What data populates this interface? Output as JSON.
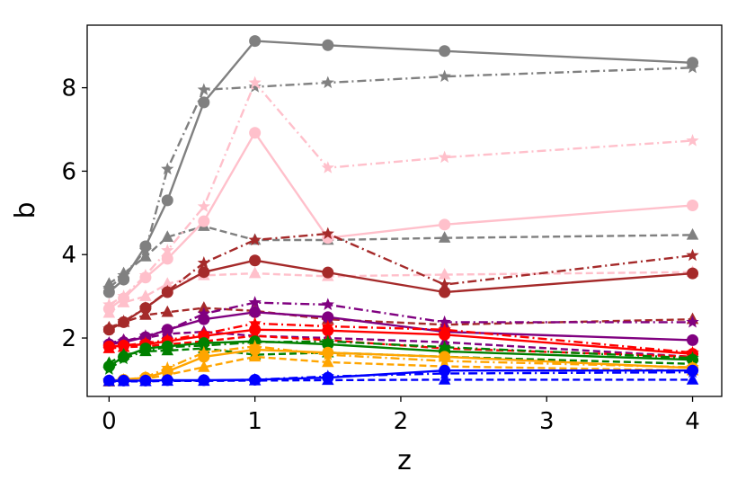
{
  "chart_data": {
    "type": "line",
    "xlabel": "z",
    "ylabel": "b",
    "xlim": [
      -0.15,
      4.2
    ],
    "ylim": [
      0.6,
      9.5
    ],
    "xticks": [
      0,
      1,
      2,
      3,
      4
    ],
    "yticks": [
      2,
      4,
      6,
      8
    ],
    "x": [
      0,
      0.1,
      0.25,
      0.4,
      0.65,
      1.0,
      1.5,
      2.3,
      4.0
    ],
    "grid": false,
    "series": [
      {
        "color": "#808080",
        "marker": "circle",
        "linestyle": "solid",
        "values": [
          3.1,
          3.4,
          4.2,
          5.3,
          7.65,
          9.12,
          9.02,
          8.88,
          8.6
        ]
      },
      {
        "color": "#808080",
        "marker": "star",
        "linestyle": "dashdot",
        "values": [
          3.2,
          3.5,
          4.1,
          6.05,
          7.95,
          8.02,
          8.12,
          8.27,
          8.48
        ]
      },
      {
        "color": "#808080",
        "marker": "triangle",
        "linestyle": "dashed",
        "values": [
          3.3,
          3.55,
          3.95,
          4.42,
          4.68,
          4.35,
          4.35,
          4.4,
          4.47
        ]
      },
      {
        "color": "#ffc0cb",
        "marker": "circle",
        "linestyle": "solid",
        "values": [
          2.7,
          2.95,
          3.45,
          3.9,
          4.8,
          6.92,
          4.4,
          4.72,
          5.18
        ]
      },
      {
        "color": "#ffc0cb",
        "marker": "star",
        "linestyle": "dashdot",
        "values": [
          2.8,
          3.0,
          3.5,
          4.1,
          5.15,
          8.12,
          6.08,
          6.33,
          6.73
        ]
      },
      {
        "color": "#ffc0cb",
        "marker": "triangle",
        "linestyle": "dashed",
        "values": [
          2.6,
          2.85,
          3.0,
          3.3,
          3.5,
          3.55,
          3.48,
          3.52,
          3.58
        ]
      },
      {
        "color": "#a52a2a",
        "marker": "circle",
        "linestyle": "solid",
        "values": [
          2.2,
          2.38,
          2.72,
          3.1,
          3.58,
          3.86,
          3.57,
          3.1,
          3.55
        ]
      },
      {
        "color": "#a52a2a",
        "marker": "star",
        "linestyle": "dashdot",
        "values": [
          2.22,
          2.4,
          2.72,
          3.12,
          3.8,
          4.35,
          4.5,
          3.28,
          3.98
        ]
      },
      {
        "color": "#a52a2a",
        "marker": "triangle",
        "linestyle": "dashed",
        "values": [
          2.25,
          2.38,
          2.55,
          2.62,
          2.72,
          2.65,
          2.45,
          2.32,
          2.45
        ]
      },
      {
        "color": "#800080",
        "marker": "circle",
        "linestyle": "solid",
        "values": [
          1.85,
          1.9,
          2.02,
          2.2,
          2.45,
          2.62,
          2.5,
          2.15,
          1.95
        ]
      },
      {
        "color": "#800080",
        "marker": "star",
        "linestyle": "dashdot",
        "values": [
          1.87,
          1.92,
          2.05,
          2.18,
          2.58,
          2.85,
          2.8,
          2.38,
          2.38
        ]
      },
      {
        "color": "#800080",
        "marker": "triangle",
        "linestyle": "dashed",
        "values": [
          1.88,
          1.95,
          2.0,
          2.1,
          2.15,
          2.05,
          2.0,
          1.9,
          1.55
        ]
      },
      {
        "color": "#ff0000",
        "marker": "circle",
        "linestyle": "solid",
        "values": [
          1.8,
          1.82,
          1.85,
          1.92,
          2.05,
          2.2,
          2.18,
          2.08,
          1.62
        ]
      },
      {
        "color": "#ff0000",
        "marker": "star",
        "linestyle": "dashdot",
        "values": [
          1.78,
          1.82,
          1.88,
          1.95,
          2.1,
          2.35,
          2.28,
          2.2,
          1.65
        ]
      },
      {
        "color": "#ff0000",
        "marker": "triangle",
        "linestyle": "dashed",
        "values": [
          1.75,
          1.78,
          1.8,
          1.85,
          1.92,
          2.05,
          1.95,
          1.75,
          1.55
        ]
      },
      {
        "color": "#008000",
        "marker": "circle",
        "linestyle": "solid",
        "values": [
          1.32,
          1.55,
          1.75,
          1.8,
          1.88,
          1.92,
          1.85,
          1.68,
          1.48
        ]
      },
      {
        "color": "#008000",
        "marker": "star",
        "linestyle": "dashdot",
        "values": [
          1.25,
          1.5,
          1.7,
          1.78,
          1.82,
          1.9,
          1.92,
          1.78,
          1.52
        ]
      },
      {
        "color": "#008000",
        "marker": "triangle",
        "linestyle": "dashed",
        "values": [
          1.4,
          1.6,
          1.68,
          1.7,
          1.75,
          1.6,
          1.65,
          1.55,
          1.38
        ]
      },
      {
        "color": "#ffa500",
        "marker": "circle",
        "linestyle": "solid",
        "values": [
          0.98,
          1.0,
          1.05,
          1.2,
          1.55,
          1.72,
          1.65,
          1.55,
          1.28
        ]
      },
      {
        "color": "#ffa500",
        "marker": "star",
        "linestyle": "dashdot",
        "values": [
          0.97,
          1.0,
          1.06,
          1.28,
          1.65,
          1.8,
          1.6,
          1.45,
          1.3
        ]
      },
      {
        "color": "#ffa500",
        "marker": "triangle",
        "linestyle": "dashed",
        "values": [
          0.95,
          0.98,
          1.02,
          1.12,
          1.3,
          1.55,
          1.42,
          1.32,
          1.22
        ]
      },
      {
        "color": "#0000ff",
        "marker": "circle",
        "linestyle": "solid",
        "values": [
          0.98,
          0.98,
          0.98,
          0.99,
          0.99,
          1.0,
          1.05,
          1.22,
          1.22
        ]
      },
      {
        "color": "#0000ff",
        "marker": "star",
        "linestyle": "dashdot",
        "values": [
          0.97,
          0.97,
          0.97,
          0.98,
          0.98,
          1.0,
          1.08,
          1.15,
          1.18
        ]
      },
      {
        "color": "#0000ff",
        "marker": "triangle",
        "linestyle": "dashed",
        "values": [
          0.96,
          0.96,
          0.96,
          0.97,
          0.97,
          0.98,
          0.99,
          1.0,
          1.0
        ]
      }
    ]
  }
}
